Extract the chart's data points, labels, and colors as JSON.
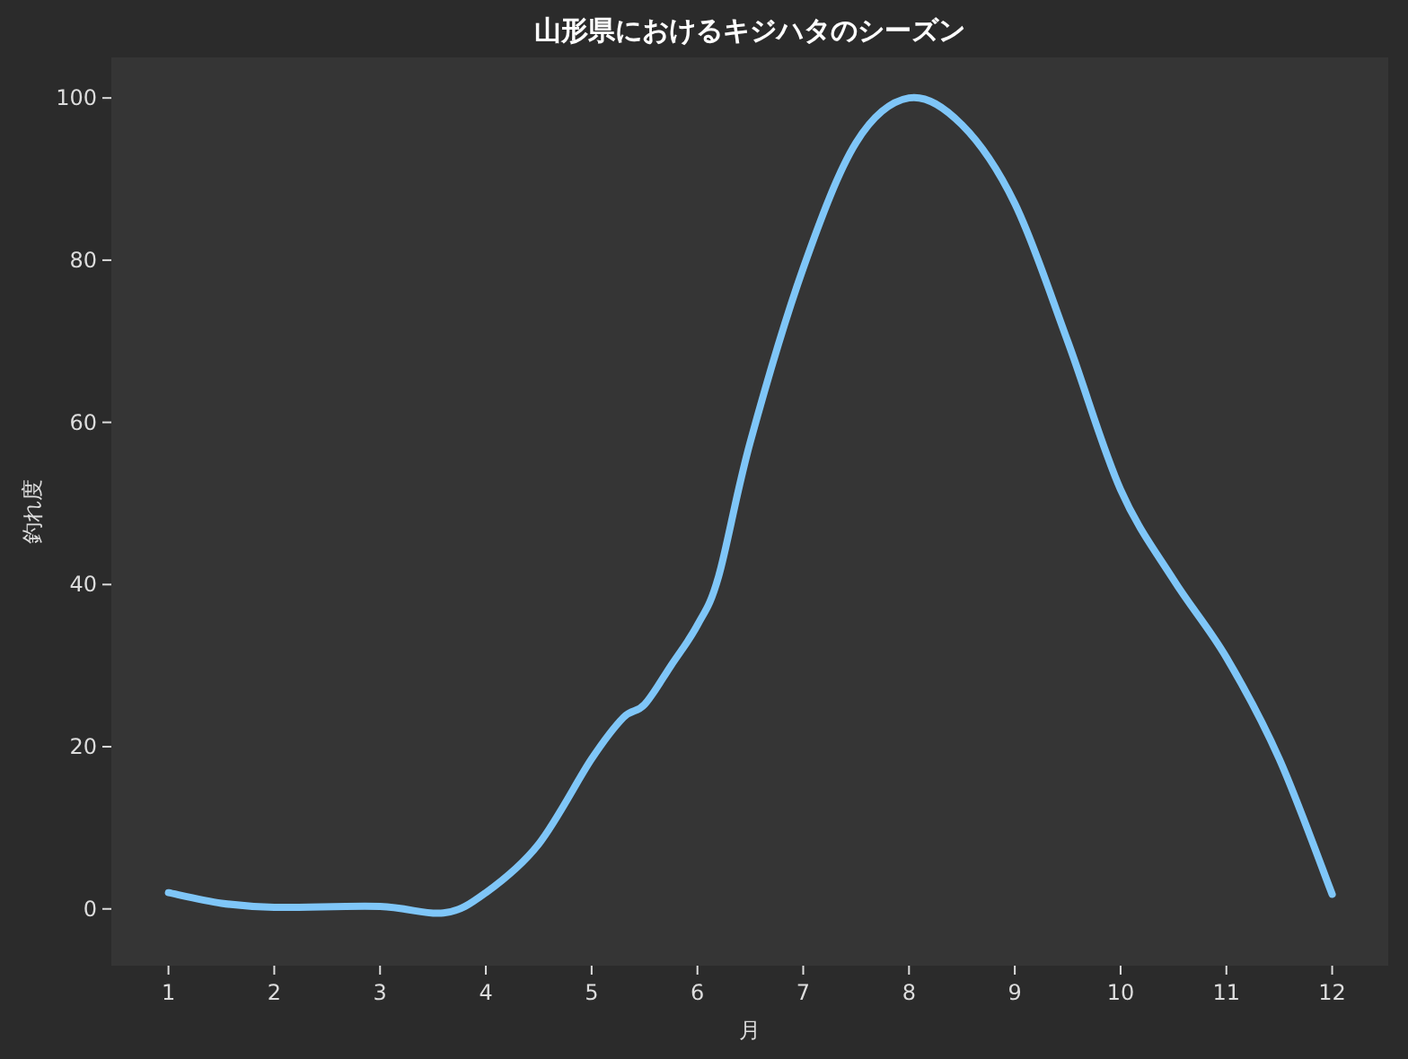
{
  "chart_data": {
    "type": "line",
    "title": "山形県におけるキジハタのシーズン",
    "xlabel": "月",
    "ylabel": "釣れ度",
    "series": [
      {
        "color": "#7fc6f8",
        "x": [
          1,
          1.5,
          2,
          3,
          3.6,
          4,
          4.5,
          5,
          5.3,
          5.5,
          5.75,
          6,
          6.2,
          6.5,
          7,
          7.5,
          8,
          8.5,
          9,
          9.5,
          10,
          10.5,
          11,
          11.5,
          12
        ],
        "values": [
          2,
          0.7,
          0.2,
          0.3,
          -0.5,
          2,
          8,
          18.5,
          23.6,
          25.2,
          30,
          35,
          41,
          57.6,
          79,
          94.5,
          100,
          96.7,
          87,
          70,
          51.7,
          40.6,
          31,
          18.5,
          1.8
        ]
      }
    ],
    "xlim": [
      0.46,
      12.53
    ],
    "ylim": [
      -7,
      105
    ],
    "xticks": [
      1,
      2,
      3,
      4,
      5,
      6,
      7,
      8,
      9,
      10,
      11,
      12
    ],
    "yticks": [
      0,
      20,
      40,
      60,
      80,
      100
    ],
    "grid": false,
    "marker": "none",
    "line_style": "solid"
  }
}
